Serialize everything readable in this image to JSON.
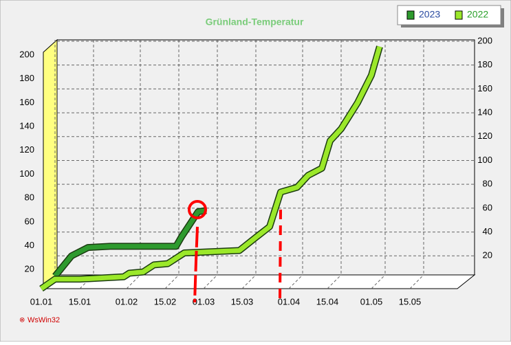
{
  "chart_data": {
    "type": "line",
    "title": "Grünland-Temperatur",
    "xlim": [
      0,
      151
    ],
    "xticks": [
      {
        "value": 0,
        "label": "01.01"
      },
      {
        "value": 14,
        "label": "15.01"
      },
      {
        "value": 31,
        "label": "01.02"
      },
      {
        "value": 45,
        "label": "15.02"
      },
      {
        "value": 59,
        "label": "01.03"
      },
      {
        "value": 73,
        "label": "15.03"
      },
      {
        "value": 90,
        "label": "01.04"
      },
      {
        "value": 104,
        "label": "15.04"
      },
      {
        "value": 120,
        "label": "01.05"
      },
      {
        "value": 134,
        "label": "15.05"
      }
    ],
    "ylim": [
      0,
      210
    ],
    "yticks": [
      20,
      40,
      60,
      80,
      100,
      120,
      140,
      160,
      180,
      200
    ],
    "grid": true,
    "legend": "top-right",
    "series": [
      {
        "name": "2023",
        "color": "#2e9a2e",
        "x": [
          0,
          6,
          12,
          20,
          30,
          44,
          46,
          50,
          52,
          55
        ],
        "values": [
          3,
          20,
          27,
          28,
          28,
          28,
          36,
          50,
          57,
          58
        ]
      },
      {
        "name": "2022",
        "color": "#9be82a",
        "x": [
          0,
          5,
          14,
          30,
          32,
          37,
          41,
          46,
          52,
          72,
          78,
          83,
          87,
          93,
          97,
          102,
          105,
          109,
          115,
          120,
          123
        ],
        "values": [
          4,
          12,
          12,
          14,
          17,
          18,
          24,
          25,
          34,
          36,
          47,
          56,
          85,
          89,
          99,
          105,
          128,
          138,
          160,
          183,
          207
        ]
      }
    ],
    "watermark": "WsWin32"
  }
}
